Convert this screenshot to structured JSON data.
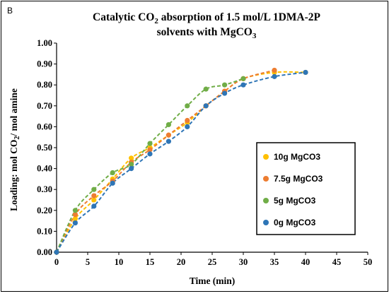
{
  "panel_label": "B",
  "chart_data": {
    "type": "scatter",
    "title": "Catalytic CO₂ absorption of 1.5 mol/L 1DMA-2P solvents with MgCO₃",
    "title_lines": {
      "line1_a": "Catalytic CO",
      "line1_sub": "2",
      "line1_b": " absorption of 1.5 mol/L 1DMA-2P",
      "line2_a": "solvents with MgCO",
      "line2_sub": "3"
    },
    "xlabel": "Time (min)",
    "ylabel": "Loading: mol CO₂/ mol amine",
    "ylabel_parts": {
      "a": "Loading: mol CO",
      "sub": "2",
      "b": "/ mol amine"
    },
    "xlim": [
      0,
      50
    ],
    "ylim": [
      0,
      1.0
    ],
    "xticks": [
      "0",
      "5",
      "10",
      "15",
      "20",
      "25",
      "30",
      "35",
      "40",
      "45",
      "50"
    ],
    "yticks": [
      "0.00",
      "0.10",
      "0.20",
      "0.30",
      "0.40",
      "0.50",
      "0.60",
      "0.70",
      "0.80",
      "0.90",
      "1.00"
    ],
    "grid": false,
    "legend_position": "bottom-right",
    "trendline_style": "dashed",
    "series": [
      {
        "name": "10g MgCO3",
        "color": "#FFC000",
        "x": [
          0,
          3,
          6,
          9,
          12,
          15,
          18,
          21,
          24,
          27,
          30,
          35,
          40
        ],
        "y": [
          0.0,
          0.16,
          0.25,
          0.35,
          0.45,
          0.5,
          0.56,
          0.62,
          0.7,
          0.77,
          0.83,
          0.86,
          0.86
        ]
      },
      {
        "name": "7.5g MgCO3",
        "color": "#ED7D31",
        "x": [
          0,
          3,
          6,
          9,
          12,
          15,
          18,
          21,
          24,
          27,
          30,
          35
        ],
        "y": [
          0.0,
          0.18,
          0.27,
          0.34,
          0.43,
          0.49,
          0.56,
          0.63,
          0.7,
          0.77,
          0.83,
          0.87
        ]
      },
      {
        "name": "5g MgCO3",
        "color": "#70AD47",
        "x": [
          0,
          3,
          6,
          9,
          12,
          15,
          18,
          21,
          24,
          27,
          30
        ],
        "y": [
          0.0,
          0.2,
          0.3,
          0.38,
          0.42,
          0.52,
          0.61,
          0.7,
          0.78,
          0.8,
          0.83
        ]
      },
      {
        "name": "0g MgCO3",
        "color": "#2E75B6",
        "x": [
          0,
          3,
          6,
          9,
          12,
          15,
          18,
          21,
          24,
          27,
          30,
          35,
          40
        ],
        "y": [
          0.0,
          0.14,
          0.22,
          0.33,
          0.4,
          0.47,
          0.53,
          0.6,
          0.7,
          0.76,
          0.8,
          0.84,
          0.86
        ]
      }
    ]
  }
}
